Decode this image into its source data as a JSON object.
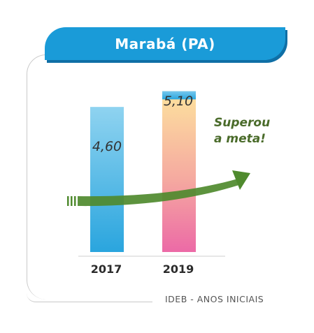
{
  "header": {
    "title": "Marabá (PA)"
  },
  "annotation": {
    "line1": "Superou",
    "line2": "a meta!"
  },
  "footer": {
    "label": "IDEB - ANOS INICIAIS"
  },
  "colors": {
    "bar_2017": [
      "#8fd3f0",
      "#2aa5de"
    ],
    "bar_2019": [
      "#fde29e",
      "#f5a9a0",
      "#ec6aa6"
    ],
    "bar_2019_top": [
      "#76c8ee",
      "#2aa5de"
    ],
    "arrow": "#4f8a2e",
    "header": "#1a9bd8"
  },
  "chart_data": {
    "type": "bar",
    "categories": [
      "2017",
      "2019"
    ],
    "values": [
      4.6,
      5.1
    ],
    "value_labels": [
      "4,60",
      "5,10"
    ],
    "ylim": [
      0,
      5.6
    ],
    "grid": false
  }
}
